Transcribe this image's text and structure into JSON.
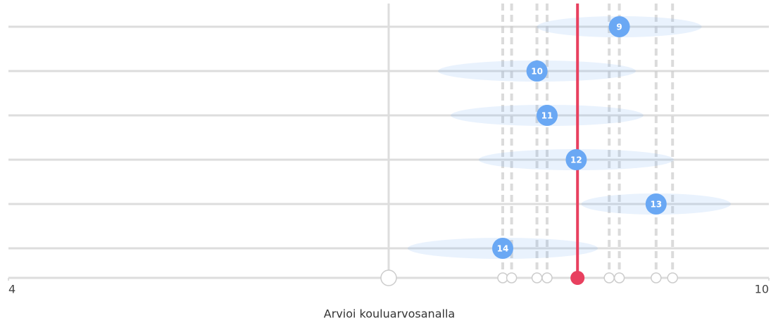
{
  "chart_data": {
    "type": "dot",
    "xlabel": "Arvioi kouluarvosanalla",
    "xlim": [
      4,
      10
    ],
    "xticks": [
      4,
      10
    ],
    "categories": [
      "9",
      "10",
      "11",
      "12",
      "13",
      "14"
    ],
    "values": [
      8.82,
      8.17,
      8.25,
      8.48,
      9.11,
      7.9
    ],
    "spread": [
      0.65,
      0.78,
      0.76,
      0.77,
      0.59,
      0.75
    ],
    "color": "#6aa8f4",
    "marker": 8.49,
    "marker_color": "#e8405f",
    "anchor": 7,
    "points": [
      7.9,
      7.97,
      8.17,
      8.25,
      8.74,
      8.82,
      9.11,
      9.24
    ]
  }
}
